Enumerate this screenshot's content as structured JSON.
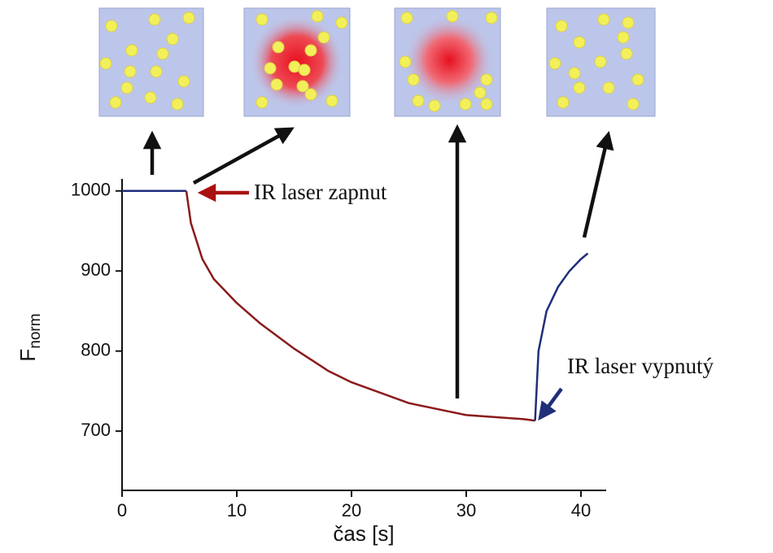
{
  "chart_data": {
    "type": "line",
    "ylabel": {
      "main": "F",
      "sub": "norm"
    },
    "xlabel": "čas [s]",
    "annotations": [
      "IR laser zapnut",
      "IR laser vypnutý"
    ],
    "x": [
      0,
      2,
      4,
      5.6,
      6,
      7,
      8,
      10,
      12,
      15,
      18,
      20,
      25,
      30,
      35,
      36,
      36.3,
      37,
      38,
      39,
      40,
      40.6
    ],
    "series": [
      {
        "color": "#1f2f7a",
        "values": [
          1000,
          1000,
          1000,
          1000,
          null,
          null,
          null,
          null,
          null,
          null,
          null,
          null,
          null,
          null,
          null,
          null,
          null,
          null,
          null,
          null,
          null,
          null
        ]
      },
      {
        "color": "#8b1a1a",
        "values": [
          null,
          null,
          null,
          1000,
          960,
          915,
          890,
          860,
          835,
          803,
          775,
          761,
          735,
          720,
          715,
          713,
          null,
          null,
          null,
          null,
          null,
          null
        ]
      },
      {
        "color": "#1f2f7a",
        "values": [
          null,
          null,
          null,
          null,
          null,
          null,
          null,
          null,
          null,
          null,
          null,
          null,
          null,
          null,
          null,
          713,
          800,
          850,
          880,
          900,
          915,
          922
        ]
      }
    ],
    "xlim": [
      0,
      42.2
    ],
    "ylim": [
      626,
      1015
    ],
    "xticks": [
      0,
      10,
      20,
      30,
      40
    ],
    "yticks": [
      700,
      800,
      900,
      1000
    ]
  }
}
